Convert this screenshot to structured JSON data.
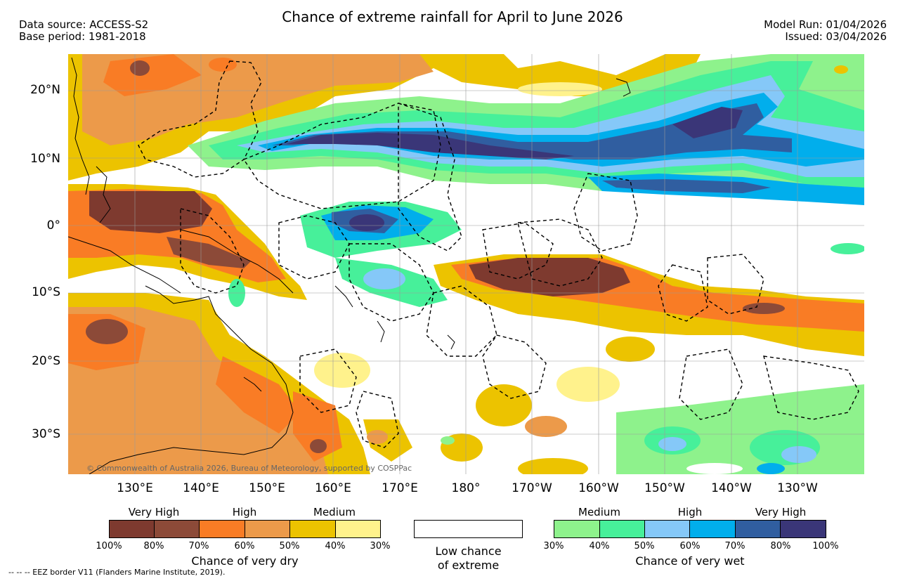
{
  "title": "Chance of extreme rainfall for April to June 2026",
  "data_source": "Data source: ACCESS-S2",
  "base_period": "Base period: 1981-2018",
  "model_run": "Model Run: 01/04/2026",
  "issued": "Issued: 03/04/2026",
  "lat_labels": [
    "20°N",
    "10°N",
    "0°",
    "10°S",
    "20°S",
    "30°S"
  ],
  "lon_labels": [
    "130°E",
    "140°E",
    "150°E",
    "160°E",
    "170°E",
    "180°",
    "170°W",
    "160°W",
    "150°W",
    "140°W",
    "130°W"
  ],
  "copyright": "© Commonwealth of Australia 2026, Bureau of Meteorology, supported by COSPPac",
  "footnote": "--  --  -- EEZ border V11 (Flanders Marine Institute, 2019).",
  "legend": {
    "dry": {
      "title": "Chance of very dry",
      "headers": [
        "Very High",
        "High",
        "Medium"
      ],
      "ticks": [
        "100%",
        "80%",
        "70%",
        "60%",
        "50%",
        "40%",
        "30%"
      ],
      "colors": [
        "#7e3a2f",
        "#8c4a38",
        "#f97c25",
        "#ec9a4a",
        "#ecc300",
        "#fff28c"
      ]
    },
    "low": {
      "line1": "Low chance",
      "line2": "of extreme",
      "color": "#ffffff"
    },
    "wet": {
      "title": "Chance of very wet",
      "headers": [
        "Medium",
        "High",
        "Very High"
      ],
      "ticks": [
        "30%",
        "40%",
        "50%",
        "60%",
        "70%",
        "80%",
        "100%"
      ],
      "colors": [
        "#8ef28c",
        "#47f09a",
        "#85c8f8",
        "#01aeec",
        "#305ea0",
        "#3a3678"
      ]
    }
  }
}
